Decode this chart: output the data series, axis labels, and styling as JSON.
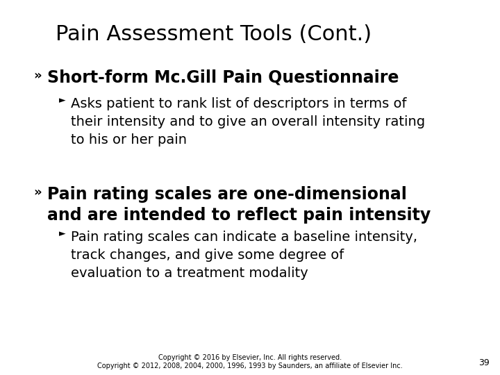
{
  "title": "Pain Assessment Tools (Cont.)",
  "title_fontsize": 22,
  "background_color": "#ffffff",
  "text_color": "#000000",
  "bullet1": "Short-form Mc.Gill Pain Questionnaire",
  "bullet1_fontsize": 17,
  "sub1_lines": [
    "Asks patient to rank list of descriptors in terms of",
    "their intensity and to give an overall intensity rating",
    "to his or her pain"
  ],
  "sub1_fontsize": 14,
  "bullet2_line1": "Pain rating scales are one-dimensional",
  "bullet2_line2": "and are intended to reflect pain intensity",
  "bullet2_fontsize": 17,
  "sub2_lines": [
    "Pain rating scales can indicate a baseline intensity,",
    "track changes, and give some degree of",
    "evaluation to a treatment modality"
  ],
  "sub2_fontsize": 14,
  "bullet_symbol": "»",
  "sub_symbol": "►",
  "footer1": "Copyright © 2016 by Elsevier, Inc. All rights reserved.",
  "footer2": "Copyright © 2012, 2008, 2004, 2000, 1996, 1993 by Saunders, an affiliate of Elsevier Inc.",
  "footer_fontsize": 7,
  "page_number": "39",
  "page_number_fontsize": 9
}
